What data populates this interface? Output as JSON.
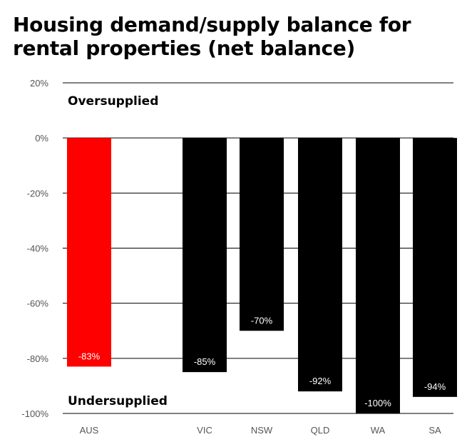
{
  "title": "Housing demand/supply balance for rental properties (net balance)",
  "chart_data": {
    "type": "bar",
    "title": "Housing demand/supply balance for rental properties (net balance)",
    "categories": [
      "AUS",
      "VIC",
      "NSW",
      "QLD",
      "WA",
      "SA"
    ],
    "values": [
      -83,
      -85,
      -70,
      -92,
      -100,
      -94
    ],
    "value_labels": [
      "-83%",
      "-85%",
      "-70%",
      "-92%",
      "-100%",
      "-94%"
    ],
    "ylim": [
      -100,
      20
    ],
    "yticks": [
      20,
      0,
      -20,
      -40,
      -60,
      -80,
      -100
    ],
    "ytick_labels": [
      "20%",
      "0%",
      "-20%",
      "-40%",
      "-60%",
      "-80%",
      "-100%"
    ],
    "annotations": {
      "top": "Oversupplied",
      "bottom": "Undersupplied"
    },
    "grid": true,
    "colors": {
      "AUS": "#ff0000",
      "default": "#000000"
    }
  }
}
